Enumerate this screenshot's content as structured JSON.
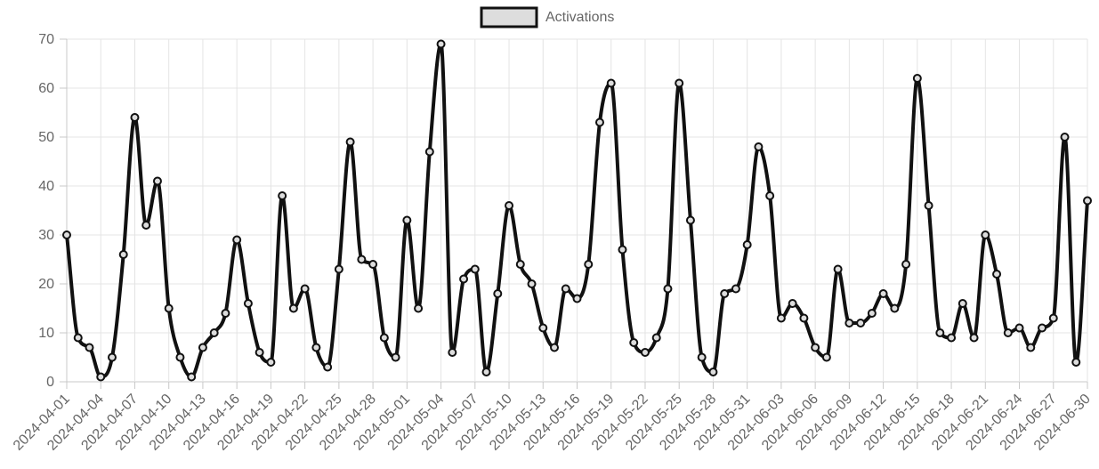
{
  "chart_data": {
    "type": "line",
    "title": "",
    "xlabel": "",
    "ylabel": "",
    "ylim": [
      0,
      70
    ],
    "yticks": [
      0,
      10,
      20,
      30,
      40,
      50,
      60,
      70
    ],
    "grid": true,
    "legend": {
      "position": "top",
      "entries": [
        "Activations"
      ]
    },
    "x_tick_labels": [
      "2024-04-01",
      "2024-04-04",
      "2024-04-07",
      "2024-04-10",
      "2024-04-13",
      "2024-04-16",
      "2024-04-19",
      "2024-04-22",
      "2024-04-25",
      "2024-04-28",
      "2024-05-01",
      "2024-05-04",
      "2024-05-07",
      "2024-05-10",
      "2024-05-13",
      "2024-05-16",
      "2024-05-19",
      "2024-05-22",
      "2024-05-25",
      "2024-05-28",
      "2024-05-31",
      "2024-06-03",
      "2024-06-06",
      "2024-06-09",
      "2024-06-12",
      "2024-06-15",
      "2024-06-18",
      "2024-06-21",
      "2024-06-24",
      "2024-06-27",
      "2024-06-30"
    ],
    "x": [
      "2024-04-01",
      "2024-04-02",
      "2024-04-03",
      "2024-04-04",
      "2024-04-05",
      "2024-04-06",
      "2024-04-07",
      "2024-04-08",
      "2024-04-09",
      "2024-04-10",
      "2024-04-11",
      "2024-04-12",
      "2024-04-13",
      "2024-04-14",
      "2024-04-15",
      "2024-04-16",
      "2024-04-17",
      "2024-04-18",
      "2024-04-19",
      "2024-04-20",
      "2024-04-21",
      "2024-04-22",
      "2024-04-23",
      "2024-04-24",
      "2024-04-25",
      "2024-04-26",
      "2024-04-27",
      "2024-04-28",
      "2024-04-29",
      "2024-04-30",
      "2024-05-01",
      "2024-05-02",
      "2024-05-03",
      "2024-05-04",
      "2024-05-05",
      "2024-05-06",
      "2024-05-07",
      "2024-05-08",
      "2024-05-09",
      "2024-05-10",
      "2024-05-11",
      "2024-05-12",
      "2024-05-13",
      "2024-05-14",
      "2024-05-15",
      "2024-05-16",
      "2024-05-17",
      "2024-05-18",
      "2024-05-19",
      "2024-05-20",
      "2024-05-21",
      "2024-05-22",
      "2024-05-23",
      "2024-05-24",
      "2024-05-25",
      "2024-05-26",
      "2024-05-27",
      "2024-05-28",
      "2024-05-29",
      "2024-05-30",
      "2024-05-31",
      "2024-06-01",
      "2024-06-02",
      "2024-06-03",
      "2024-06-04",
      "2024-06-05",
      "2024-06-06",
      "2024-06-07",
      "2024-06-08",
      "2024-06-09",
      "2024-06-10",
      "2024-06-11",
      "2024-06-12",
      "2024-06-13",
      "2024-06-14",
      "2024-06-15",
      "2024-06-16",
      "2024-06-17",
      "2024-06-18",
      "2024-06-19",
      "2024-06-20",
      "2024-06-21",
      "2024-06-22",
      "2024-06-23",
      "2024-06-24",
      "2024-06-25",
      "2024-06-26",
      "2024-06-27",
      "2024-06-28",
      "2024-06-29",
      "2024-06-30"
    ],
    "series": [
      {
        "name": "Activations",
        "color": "#111111",
        "fill": "#dddddd",
        "values": [
          30,
          9,
          7,
          1,
          5,
          26,
          54,
          32,
          41,
          15,
          5,
          1,
          7,
          10,
          14,
          29,
          16,
          6,
          4,
          38,
          15,
          19,
          7,
          3,
          23,
          49,
          25,
          24,
          9,
          5,
          33,
          15,
          47,
          69,
          6,
          21,
          23,
          2,
          18,
          36,
          24,
          20,
          11,
          7,
          19,
          17,
          24,
          53,
          61,
          27,
          8,
          6,
          9,
          19,
          61,
          33,
          5,
          2,
          18,
          19,
          28,
          48,
          38,
          13,
          16,
          13,
          7,
          5,
          23,
          12,
          12,
          14,
          18,
          15,
          24,
          62,
          36,
          10,
          9,
          16,
          9,
          30,
          22,
          10,
          11,
          7,
          11,
          13,
          50,
          4,
          37
        ]
      }
    ]
  }
}
